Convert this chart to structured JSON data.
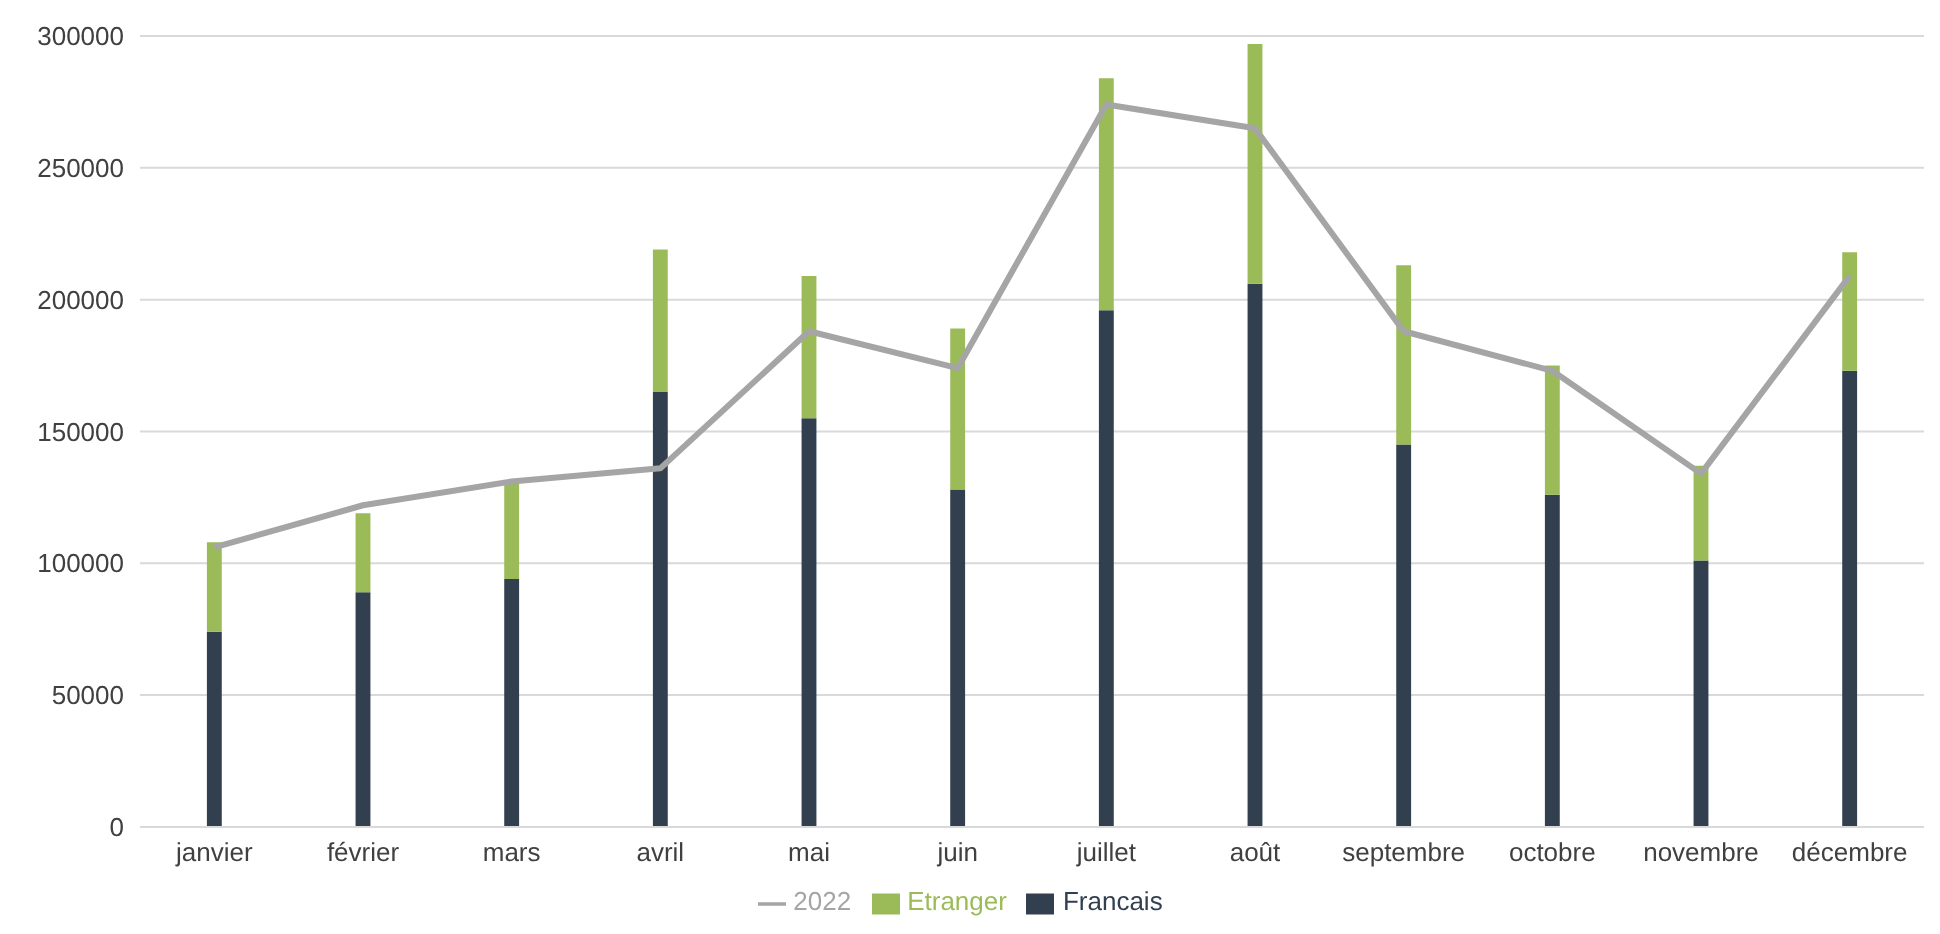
{
  "chart_data": {
    "type": "bar",
    "stacked": true,
    "categories": [
      "janvier",
      "février",
      "mars",
      "avril",
      "mai",
      "juin",
      "juillet",
      "août",
      "septembre",
      "octobre",
      "novembre",
      "décembre"
    ],
    "series": [
      {
        "name": "Francais",
        "color": "#323f4f",
        "values": [
          74000,
          89000,
          94000,
          165000,
          155000,
          128000,
          196000,
          206000,
          145000,
          126000,
          101000,
          173000
        ]
      },
      {
        "name": "Etranger",
        "color": "#9bbb59",
        "values": [
          34000,
          30000,
          37000,
          54000,
          54000,
          61000,
          88000,
          91000,
          68000,
          49000,
          36000,
          45000
        ]
      },
      {
        "name": "2022",
        "type": "line",
        "color": "#a5a5a5",
        "values": [
          106000,
          122000,
          131000,
          136000,
          188000,
          174000,
          274000,
          265000,
          188000,
          173000,
          134000,
          209000
        ]
      }
    ],
    "ylim": [
      0,
      300000
    ],
    "yticks": [
      0,
      50000,
      100000,
      150000,
      200000,
      250000,
      300000
    ],
    "grid": "y",
    "legend": "bottom",
    "marker": "none"
  }
}
